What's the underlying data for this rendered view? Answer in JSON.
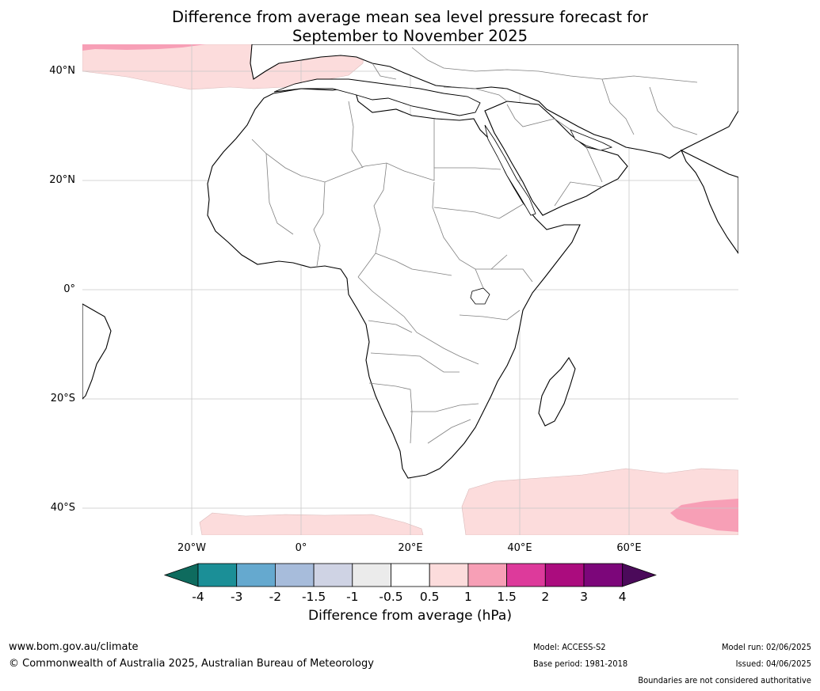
{
  "title_line1": "Difference from average mean sea level pressure forecast for",
  "title_line2": "September to November 2025",
  "lat_labels": [
    "40°N",
    "20°N",
    "0°",
    "20°S",
    "40°S"
  ],
  "lon_labels": [
    "20°W",
    "0°",
    "20°E",
    "40°E",
    "60°E"
  ],
  "colorbar": {
    "labels": [
      "-4",
      "-3",
      "-2",
      "-1.5",
      "-1",
      "-0.5",
      "0.5",
      "1",
      "1.5",
      "2",
      "3",
      "4"
    ],
    "colors": [
      "#0e6b5e",
      "#1b8f97",
      "#65a9cf",
      "#a7bcdb",
      "#cfd3e4",
      "#ebebeb",
      "#ffffff",
      "#fcdcdc",
      "#f79fb6",
      "#dd3a9b",
      "#ab0c7e",
      "#7c067a",
      "#4b0a5a"
    ],
    "title": "Difference from average (hPa)"
  },
  "footer": {
    "site": "www.bom.gov.au/climate",
    "copyright": "© Commonwealth of Australia 2025, Australian Bureau of Meteorology",
    "model": "Model: ACCESS-S2",
    "base_period": "Base period: 1981-2018",
    "model_run": "Model run: 02/06/2025",
    "issued": "Issued: 04/06/2025",
    "boundaries": "Boundaries are not considered authoritative"
  }
}
